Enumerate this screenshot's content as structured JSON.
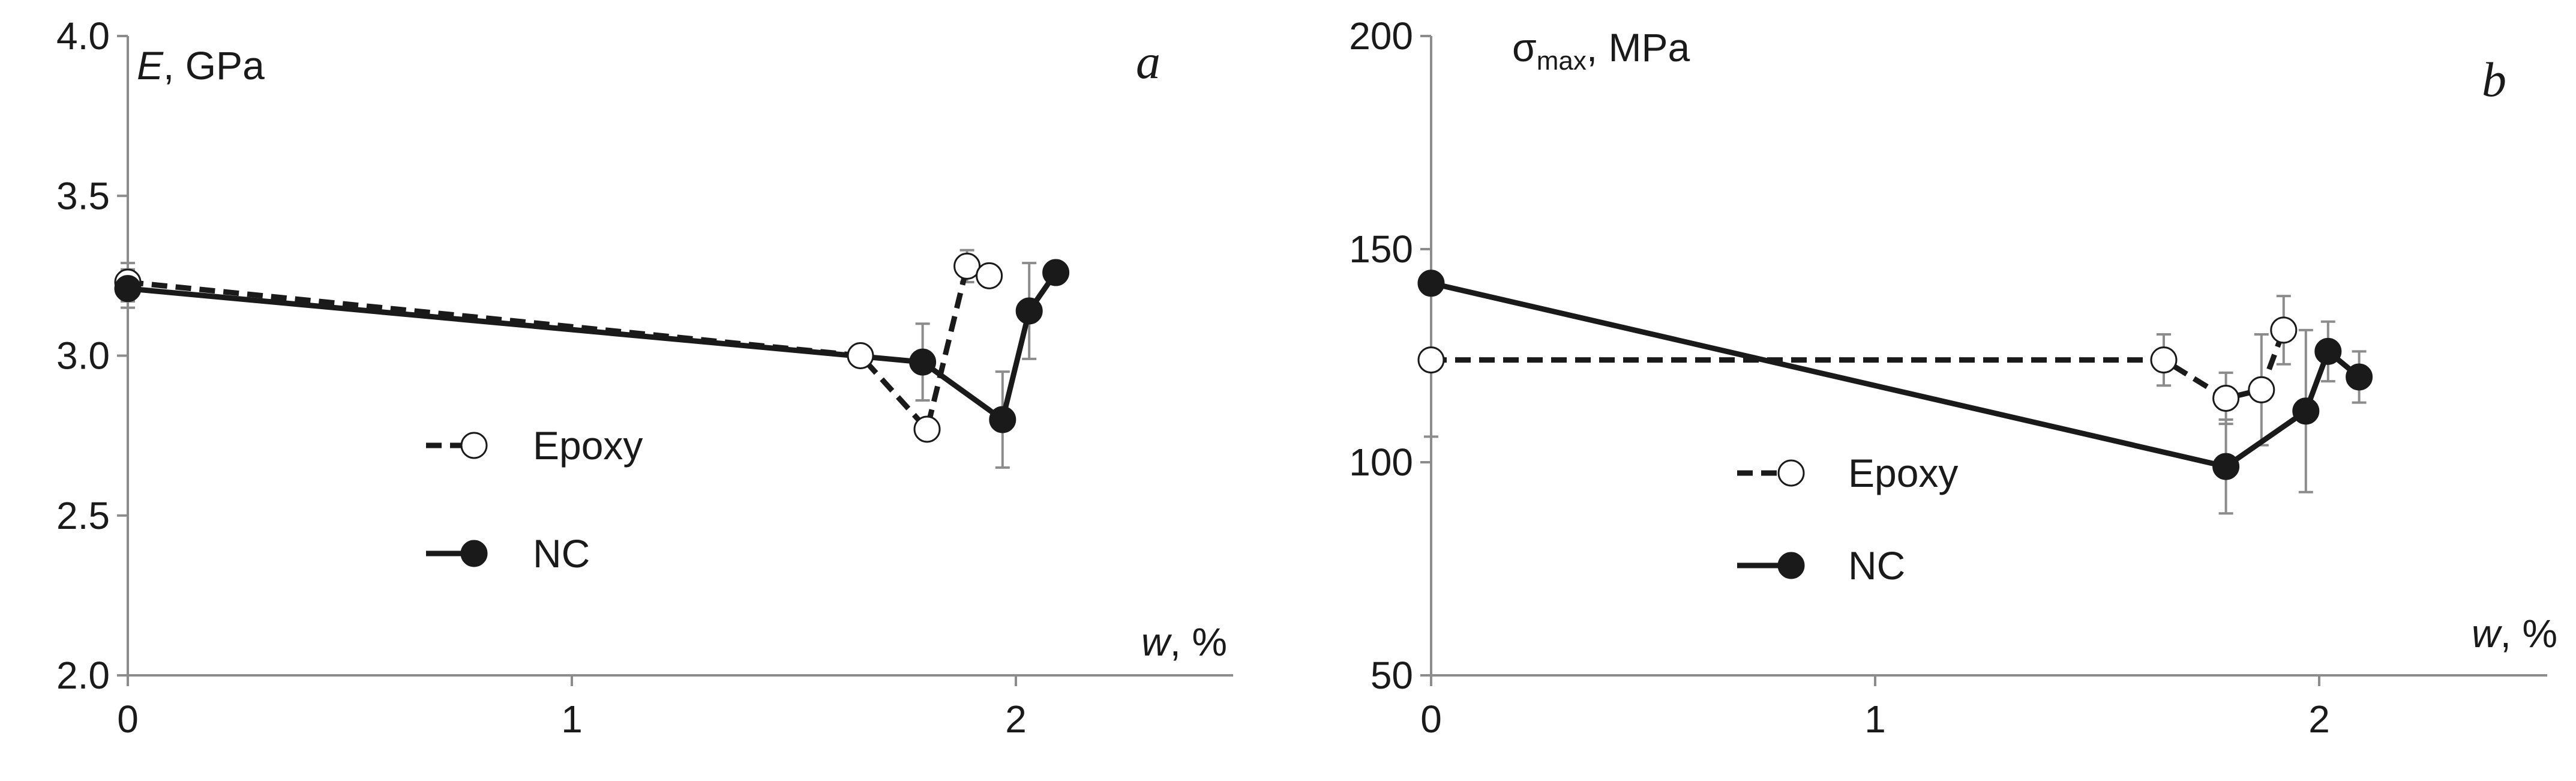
{
  "chart_data": [
    {
      "type": "line",
      "panel_label": "a",
      "ylabel": {
        "symbol": "E",
        "unit": ", GPa"
      },
      "xlabel": {
        "symbol": "w",
        "unit": ", %"
      },
      "xlim": [
        0,
        2.5
      ],
      "ylim": [
        2.0,
        4.0
      ],
      "xticks": [
        "0",
        "1",
        "2"
      ],
      "yticks": [
        "2.0",
        "2.5",
        "3.0",
        "3.5",
        "4.0"
      ],
      "grid": false,
      "legend_position": "center",
      "series": [
        {
          "name": "Epoxy",
          "style": "dashed",
          "marker": "open-circle",
          "x": [
            0,
            1.65,
            1.8,
            1.89,
            1.94
          ],
          "y": [
            3.23,
            3.0,
            2.77,
            3.28,
            3.25
          ],
          "yerr": [
            0.06,
            0.03,
            0.03,
            0.05,
            0.03
          ]
        },
        {
          "name": "NC",
          "style": "solid",
          "marker": "filled-circle",
          "x": [
            0,
            1.79,
            1.97,
            2.03,
            2.09
          ],
          "y": [
            3.21,
            2.98,
            2.8,
            3.14,
            3.26
          ],
          "yerr": [
            0.06,
            0.12,
            0.15,
            0.15,
            0.03
          ]
        }
      ]
    },
    {
      "type": "line",
      "panel_label": "b",
      "ylabel": {
        "symbol": "σ",
        "sub": "max",
        "unit": ", MPa"
      },
      "xlabel": {
        "symbol": "w",
        "unit": ", %"
      },
      "xlim": [
        0,
        2.5
      ],
      "ylim": [
        50,
        200
      ],
      "xticks": [
        "0",
        "1",
        "2"
      ],
      "yticks": [
        "50",
        "100",
        "150",
        "200"
      ],
      "grid": false,
      "legend_position": "center",
      "series": [
        {
          "name": "Epoxy",
          "style": "dashed",
          "marker": "open-circle",
          "x": [
            0,
            1.65,
            1.79,
            1.87,
            1.92
          ],
          "y": [
            124,
            124,
            115,
            117,
            131
          ],
          "yerr": [
            18,
            6,
            6,
            13,
            8
          ]
        },
        {
          "name": "NC",
          "style": "solid",
          "marker": "filled-circle",
          "x": [
            0,
            1.79,
            1.97,
            2.02,
            2.09
          ],
          "y": [
            142,
            99,
            112,
            126,
            120
          ],
          "yerr": [
            2,
            11,
            19,
            7,
            6
          ]
        }
      ]
    }
  ]
}
